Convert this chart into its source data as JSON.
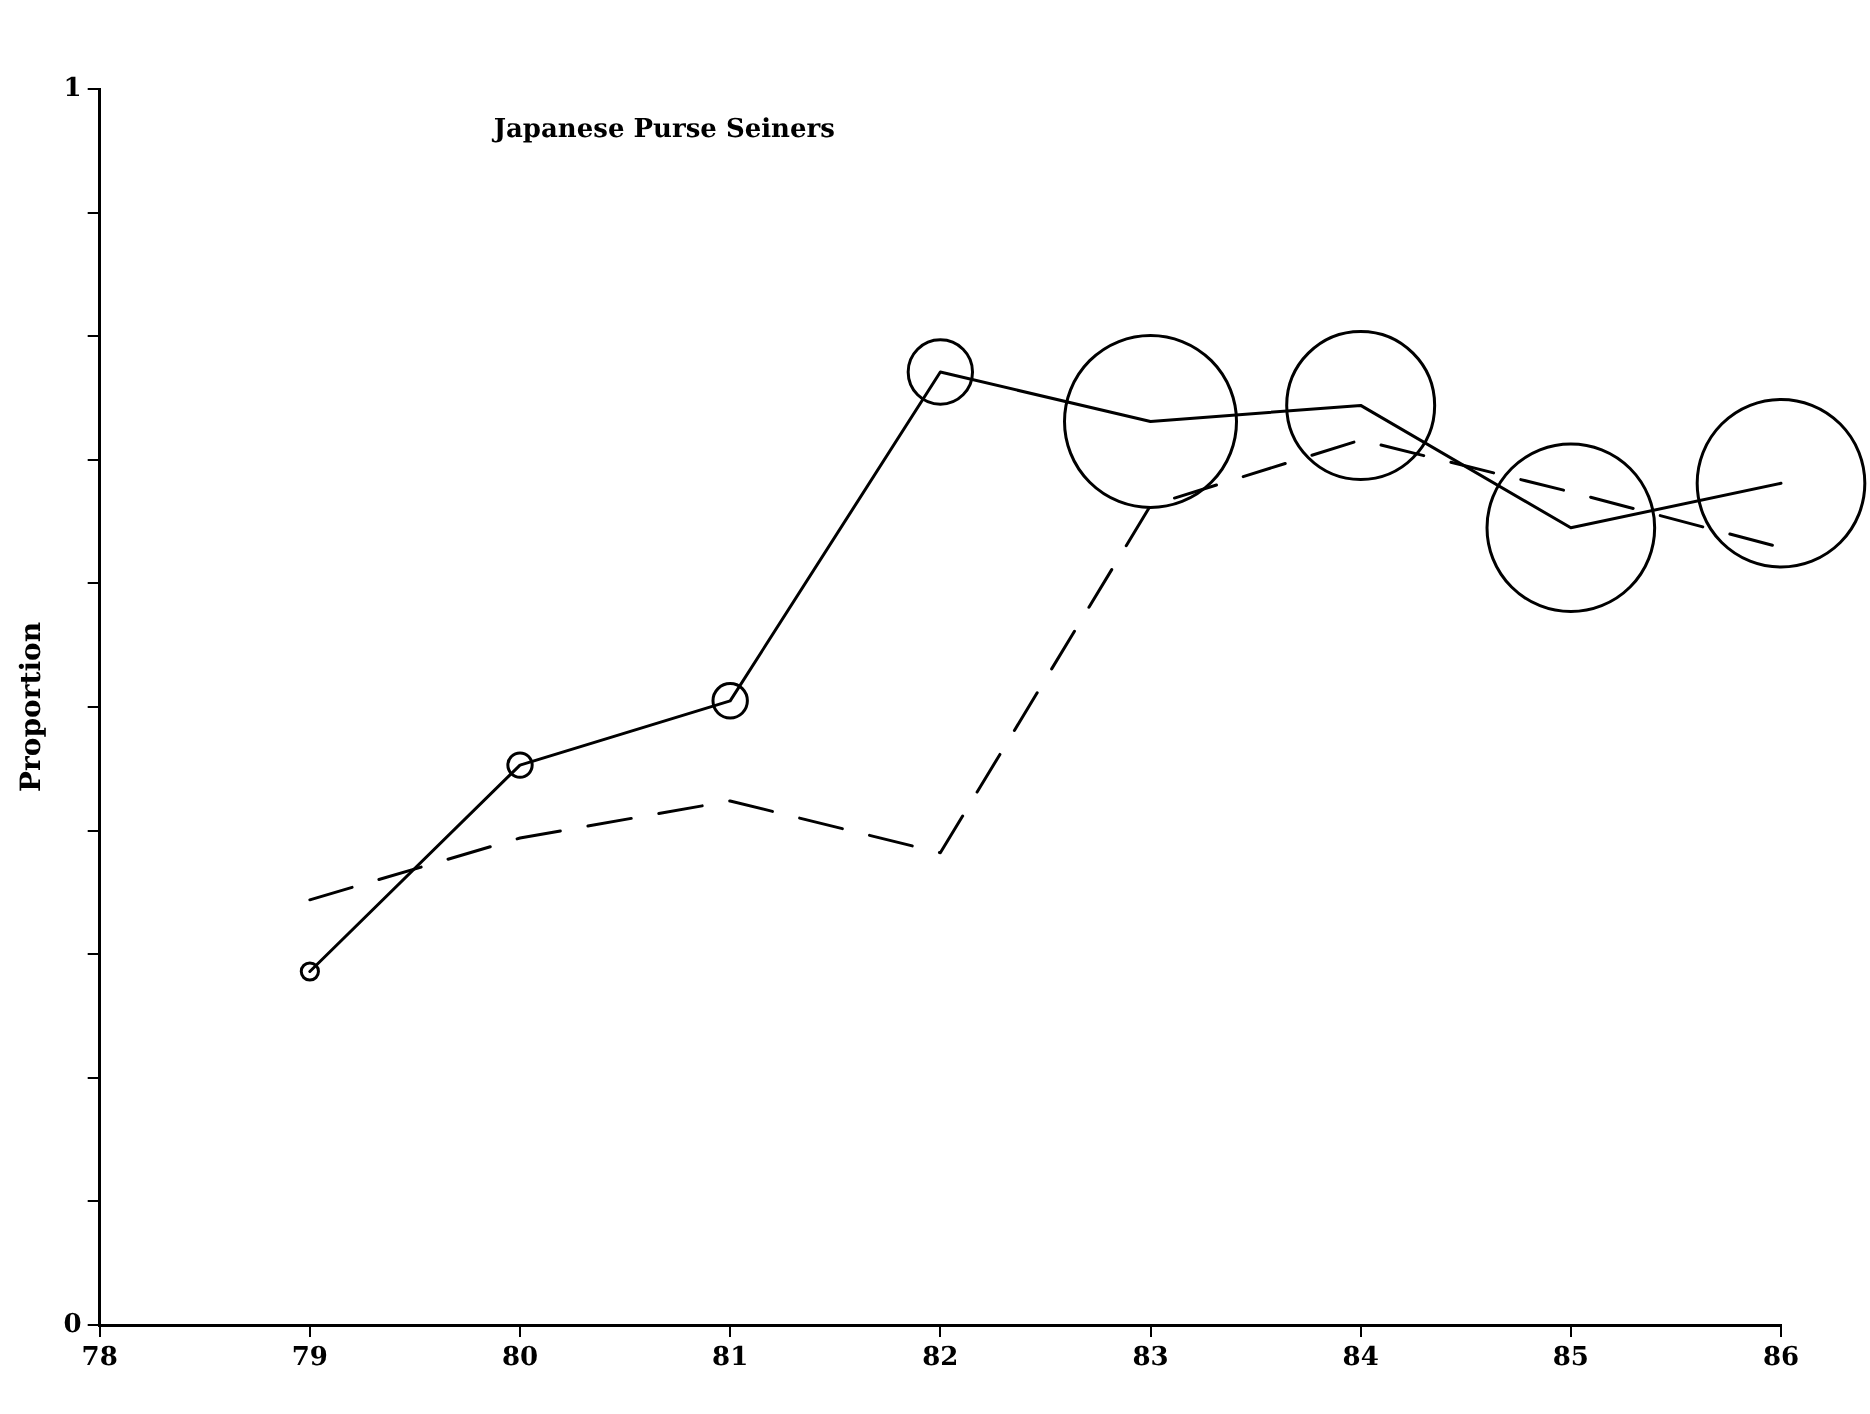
{
  "chart_data": {
    "type": "line",
    "title": "Japanese Purse Seiners",
    "ylabel": "Proportion",
    "x": [
      79,
      80,
      81,
      82,
      83,
      84,
      85,
      86
    ],
    "series": [
      {
        "color": "#000000",
        "marker": "none",
        "line_style": "solid",
        "values": [
          0.286,
          0.453,
          0.505,
          0.771,
          0.731,
          0.744,
          0.645,
          0.681
        ]
      },
      {
        "type": "bubble",
        "color": "#000000",
        "marker": "circle",
        "values": [
          0.286,
          0.453,
          0.505,
          0.771,
          0.731,
          0.744,
          0.645,
          0.681
        ],
        "sizes": [
          0.01,
          0.02,
          0.04,
          0.14,
          1,
          0.74,
          0.95,
          0.95
        ]
      },
      {
        "color": "#000000",
        "marker": "none",
        "line_style": "dashed",
        "values": [
          0.344,
          0.394,
          0.424,
          0.382,
          0.663,
          0.716,
          0.674,
          0.629
        ]
      }
    ],
    "xlim": [
      78,
      86
    ],
    "xticks": [
      78,
      79,
      80,
      81,
      82,
      83,
      84,
      85,
      86
    ],
    "ylim": [
      0,
      1
    ],
    "yticks": [
      0,
      {
        "value": 0.1,
        "label": null
      },
      {
        "value": 0.2,
        "label": null
      },
      {
        "value": 0.3,
        "label": null
      },
      {
        "value": 0.4,
        "label": null
      },
      {
        "value": 0.5,
        "label": null
      },
      {
        "value": 0.6,
        "label": null
      },
      {
        "value": 0.7,
        "label": null
      },
      {
        "value": 0.8,
        "label": null
      },
      {
        "value": 0.9,
        "label": null
      },
      1
    ],
    "grid": false
  }
}
